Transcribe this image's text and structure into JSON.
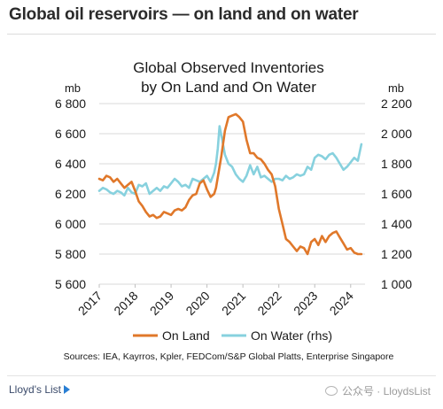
{
  "header": {
    "title": "Global oil reservoirs — on land and on water"
  },
  "footer": {
    "brand": "Lloyd's List",
    "watermark": "公众号 · LloydsList"
  },
  "colors": {
    "on_land": "#E0782A",
    "on_water": "#87D1DE"
  },
  "chart_data": {
    "type": "line",
    "title_lines": [
      "Global Observed Inventories",
      "by On Land and On Water"
    ],
    "ylabel_left": "mb",
    "ylabel_right": "mb",
    "ylim_left": [
      5600,
      6800
    ],
    "ylim_right": [
      1000,
      2200
    ],
    "yticks_left": [
      "6 800",
      "6 600",
      "6 400",
      "6 200",
      "6 000",
      "5 800",
      "5 600"
    ],
    "yticks_right": [
      "2 200",
      "2 000",
      "1 800",
      "1 600",
      "1 400",
      "1 200",
      "1 000"
    ],
    "xlim": [
      2017,
      2024.4
    ],
    "xticks": [
      "2017",
      "2018",
      "2019",
      "2020",
      "2021",
      "2022",
      "2023",
      "2024"
    ],
    "source": "Sources: IEA, Kayrros, Kpler, FEDCom/S&P Global Platts, Enterprise Singapore",
    "series": [
      {
        "name": "On Land",
        "axis": "left",
        "color": "#E0782A",
        "x": [
          2017.0,
          2017.1,
          2017.2,
          2017.3,
          2017.4,
          2017.5,
          2017.6,
          2017.7,
          2017.8,
          2017.9,
          2018.0,
          2018.1,
          2018.2,
          2018.3,
          2018.4,
          2018.5,
          2018.6,
          2018.7,
          2018.8,
          2018.9,
          2019.0,
          2019.1,
          2019.2,
          2019.3,
          2019.4,
          2019.5,
          2019.6,
          2019.7,
          2019.8,
          2019.9,
          2020.0,
          2020.1,
          2020.2,
          2020.25,
          2020.3,
          2020.35,
          2020.4,
          2020.5,
          2020.6,
          2020.7,
          2020.8,
          2020.9,
          2021.0,
          2021.1,
          2021.2,
          2021.3,
          2021.4,
          2021.5,
          2021.6,
          2021.7,
          2021.8,
          2021.9,
          2022.0,
          2022.1,
          2022.2,
          2022.3,
          2022.4,
          2022.5,
          2022.6,
          2022.7,
          2022.8,
          2022.9,
          2023.0,
          2023.1,
          2023.2,
          2023.3,
          2023.4,
          2023.5,
          2023.6,
          2023.7,
          2023.8,
          2023.9,
          2024.0,
          2024.1,
          2024.2,
          2024.3
        ],
        "values": [
          6300,
          6290,
          6320,
          6310,
          6280,
          6300,
          6270,
          6240,
          6260,
          6280,
          6220,
          6150,
          6120,
          6080,
          6050,
          6060,
          6040,
          6050,
          6080,
          6070,
          6060,
          6090,
          6100,
          6090,
          6110,
          6160,
          6190,
          6200,
          6270,
          6290,
          6230,
          6180,
          6200,
          6240,
          6310,
          6380,
          6450,
          6620,
          6710,
          6720,
          6730,
          6710,
          6680,
          6560,
          6470,
          6470,
          6440,
          6430,
          6400,
          6360,
          6330,
          6250,
          6100,
          6000,
          5900,
          5880,
          5850,
          5820,
          5850,
          5840,
          5800,
          5880,
          5900,
          5860,
          5920,
          5880,
          5920,
          5940,
          5950,
          5910,
          5870,
          5830,
          5840,
          5810,
          5800,
          5800
        ]
      },
      {
        "name": "On Water (rhs)",
        "axis": "right",
        "color": "#87D1DE",
        "x": [
          2017.0,
          2017.1,
          2017.2,
          2017.3,
          2017.4,
          2017.5,
          2017.6,
          2017.7,
          2017.8,
          2017.9,
          2018.0,
          2018.1,
          2018.2,
          2018.3,
          2018.4,
          2018.5,
          2018.6,
          2018.7,
          2018.8,
          2018.9,
          2019.0,
          2019.1,
          2019.2,
          2019.3,
          2019.4,
          2019.5,
          2019.6,
          2019.7,
          2019.8,
          2019.9,
          2020.0,
          2020.1,
          2020.2,
          2020.25,
          2020.3,
          2020.35,
          2020.4,
          2020.5,
          2020.6,
          2020.7,
          2020.8,
          2020.9,
          2021.0,
          2021.1,
          2021.2,
          2021.3,
          2021.4,
          2021.5,
          2021.6,
          2021.7,
          2021.8,
          2021.9,
          2022.0,
          2022.1,
          2022.2,
          2022.3,
          2022.4,
          2022.5,
          2022.6,
          2022.7,
          2022.8,
          2022.9,
          2023.0,
          2023.1,
          2023.2,
          2023.3,
          2023.4,
          2023.5,
          2023.6,
          2023.7,
          2023.8,
          2023.9,
          2024.0,
          2024.1,
          2024.2,
          2024.3
        ],
        "values": [
          1620,
          1640,
          1630,
          1610,
          1600,
          1620,
          1610,
          1590,
          1640,
          1610,
          1600,
          1660,
          1650,
          1670,
          1600,
          1620,
          1640,
          1620,
          1650,
          1640,
          1670,
          1700,
          1680,
          1650,
          1660,
          1640,
          1700,
          1690,
          1680,
          1700,
          1720,
          1680,
          1740,
          1800,
          1900,
          2050,
          1990,
          1860,
          1800,
          1780,
          1730,
          1700,
          1680,
          1720,
          1790,
          1730,
          1780,
          1710,
          1720,
          1700,
          1680,
          1700,
          1700,
          1690,
          1720,
          1700,
          1710,
          1730,
          1720,
          1730,
          1780,
          1760,
          1840,
          1860,
          1850,
          1830,
          1860,
          1870,
          1840,
          1800,
          1760,
          1780,
          1810,
          1840,
          1820,
          1930
        ]
      }
    ]
  }
}
